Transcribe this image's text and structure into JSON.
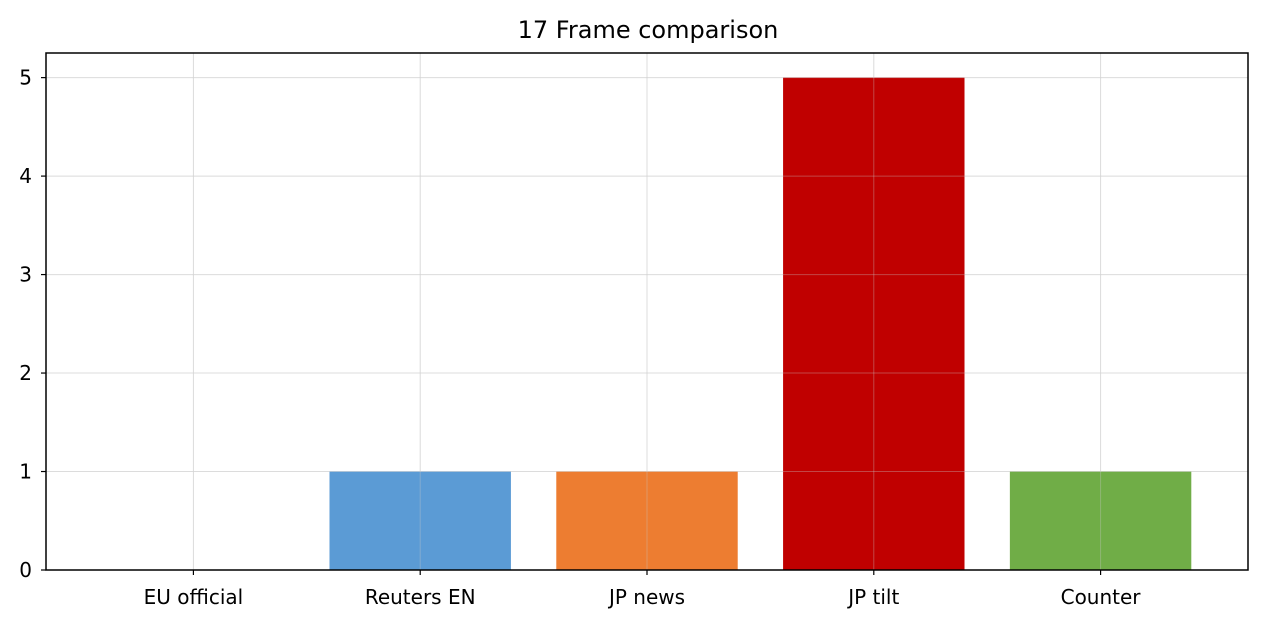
{
  "chart_data": {
    "type": "bar",
    "title": "17 Frame comparison",
    "xlabel": "",
    "ylabel": "",
    "categories": [
      "EU official",
      "Reuters EN",
      "JP news",
      "JP tilt",
      "Counter"
    ],
    "values": [
      0,
      1,
      1,
      5,
      1
    ],
    "colors": [
      "#5b9bd5",
      "#5b9bd5",
      "#ed7d31",
      "#c00000",
      "#70ad47"
    ],
    "ylim": [
      0,
      5.25
    ],
    "yticks": [
      0,
      1,
      2,
      3,
      4,
      5
    ],
    "grid": true,
    "legend": "none"
  }
}
